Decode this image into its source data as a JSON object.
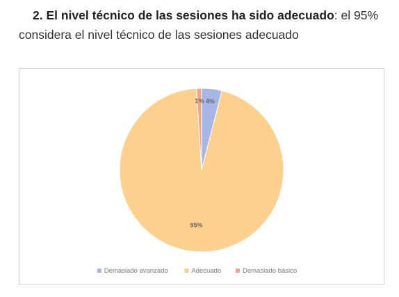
{
  "heading": {
    "bold": "2. El nivel técnico de las sesiones ha sido adecuado",
    "rest": ": el 95% considera el nivel técnico de las sesiones adecuado"
  },
  "chart_data": {
    "type": "pie",
    "categories": [
      "Demasiado avanzado",
      "Adecuado",
      "Demasiado básico"
    ],
    "values": [
      4,
      95,
      1
    ],
    "value_labels": [
      "4%",
      "95%",
      "1%"
    ],
    "colors": [
      "#a7b6e6",
      "#fdd08e",
      "#f3a48b"
    ]
  }
}
